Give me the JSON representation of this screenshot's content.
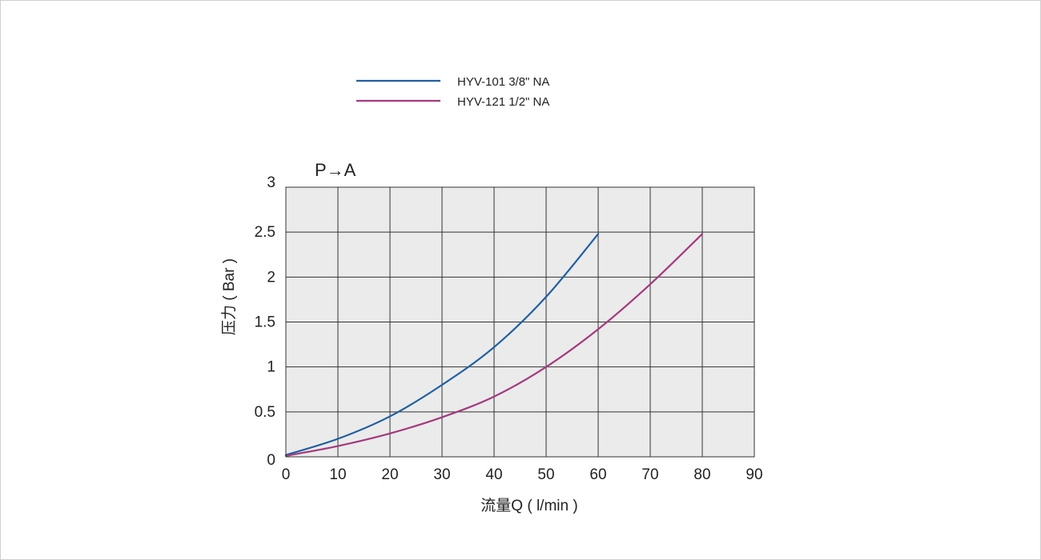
{
  "chart_data": {
    "type": "line",
    "title": "P→A",
    "xlabel": "流量Q ( l/min )",
    "ylabel": "压力 ( Bar )",
    "xlim": [
      0,
      90
    ],
    "ylim": [
      0,
      3
    ],
    "xticks": [
      0,
      10,
      20,
      30,
      40,
      50,
      60,
      70,
      80,
      90
    ],
    "yticks": [
      "0",
      "0.5",
      "1",
      "1.5",
      "2",
      "2.5",
      "3"
    ],
    "grid": true,
    "legend_position": "top",
    "background_color": "#ebebeb",
    "series": [
      {
        "name": "HYV-101 3/8\" NA",
        "color": "#1f5fa3",
        "x": [
          0,
          10,
          20,
          30,
          40,
          50,
          60
        ],
        "y": [
          0.02,
          0.2,
          0.45,
          0.8,
          1.22,
          1.78,
          2.48
        ]
      },
      {
        "name": "HYV-121 1/2\" NA",
        "color": "#a33a7f",
        "x": [
          0,
          10,
          20,
          30,
          40,
          50,
          60,
          70,
          80
        ],
        "y": [
          0.01,
          0.12,
          0.26,
          0.44,
          0.67,
          1.0,
          1.42,
          1.92,
          2.48
        ]
      }
    ]
  }
}
